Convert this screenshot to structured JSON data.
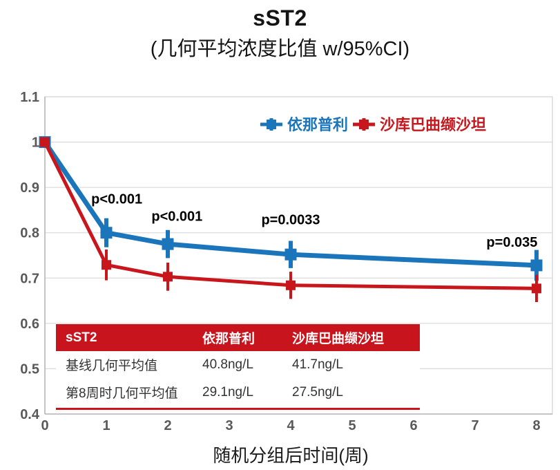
{
  "header": {
    "title": "sST2",
    "subtitle": "(几何平均浓度比值 w/95%CI)"
  },
  "colors": {
    "blue": "#1B75BB",
    "red": "#C8161D",
    "grid": "#DCDCDC",
    "axis_line": "#ABABAB",
    "border": "#D6D6D6",
    "tick_text": "#595959",
    "annotation": "#000000",
    "table_header_bg": "#C8151D",
    "table_text": "#333333"
  },
  "chart_data": {
    "type": "line",
    "x": [
      0,
      1,
      2,
      4,
      8
    ],
    "xlim": [
      0,
      8
    ],
    "ylim": [
      0.4,
      1.1
    ],
    "x_ticks": [
      "0",
      "1",
      "2",
      "3",
      "4",
      "5",
      "6",
      "7",
      "8"
    ],
    "y_ticks": [
      "1.1",
      "1",
      "0.9",
      "0.8",
      "0.7",
      "0.6",
      "0.5",
      "0.4"
    ],
    "xlabel": "随机分组后时间(周)",
    "grid": "horizontal-only",
    "legend_position": "top-right-inside",
    "series": [
      {
        "id": "enalapril",
        "name": "依那普利",
        "color": "#1B75BB",
        "values": [
          1.0,
          0.8,
          0.775,
          0.752,
          0.728
        ],
        "error": [
          0,
          0.032,
          0.031,
          0.03,
          0.034
        ],
        "line_width": 7,
        "marker": "square",
        "marker_size": 17
      },
      {
        "id": "sacubitril-valsartan",
        "name": "沙库巴曲缬沙坦",
        "color": "#C8161D",
        "values": [
          1.0,
          0.729,
          0.703,
          0.684,
          0.677
        ],
        "error": [
          0,
          0.034,
          0.031,
          0.03,
          0.03
        ],
        "line_width": 5,
        "marker": "square",
        "marker_size": 14
      }
    ],
    "annotations": [
      {
        "text": "p<0.001",
        "x": 1.17,
        "y": 0.875
      },
      {
        "text": "p<0.001",
        "x": 2.15,
        "y": 0.837
      },
      {
        "text": "p=0.0033",
        "x": 4.0,
        "y": 0.829
      },
      {
        "text": "p=0.035",
        "x": 7.6,
        "y": 0.78
      }
    ]
  },
  "table": {
    "header": [
      "sST2",
      "依那普利",
      "沙库巴曲缬沙坦"
    ],
    "rows": [
      [
        "基线几何平均值",
        "40.8ng/L",
        "41.7ng/L"
      ],
      [
        "第8周时几何平均值",
        "29.1ng/L",
        "27.5ng/L"
      ]
    ]
  }
}
